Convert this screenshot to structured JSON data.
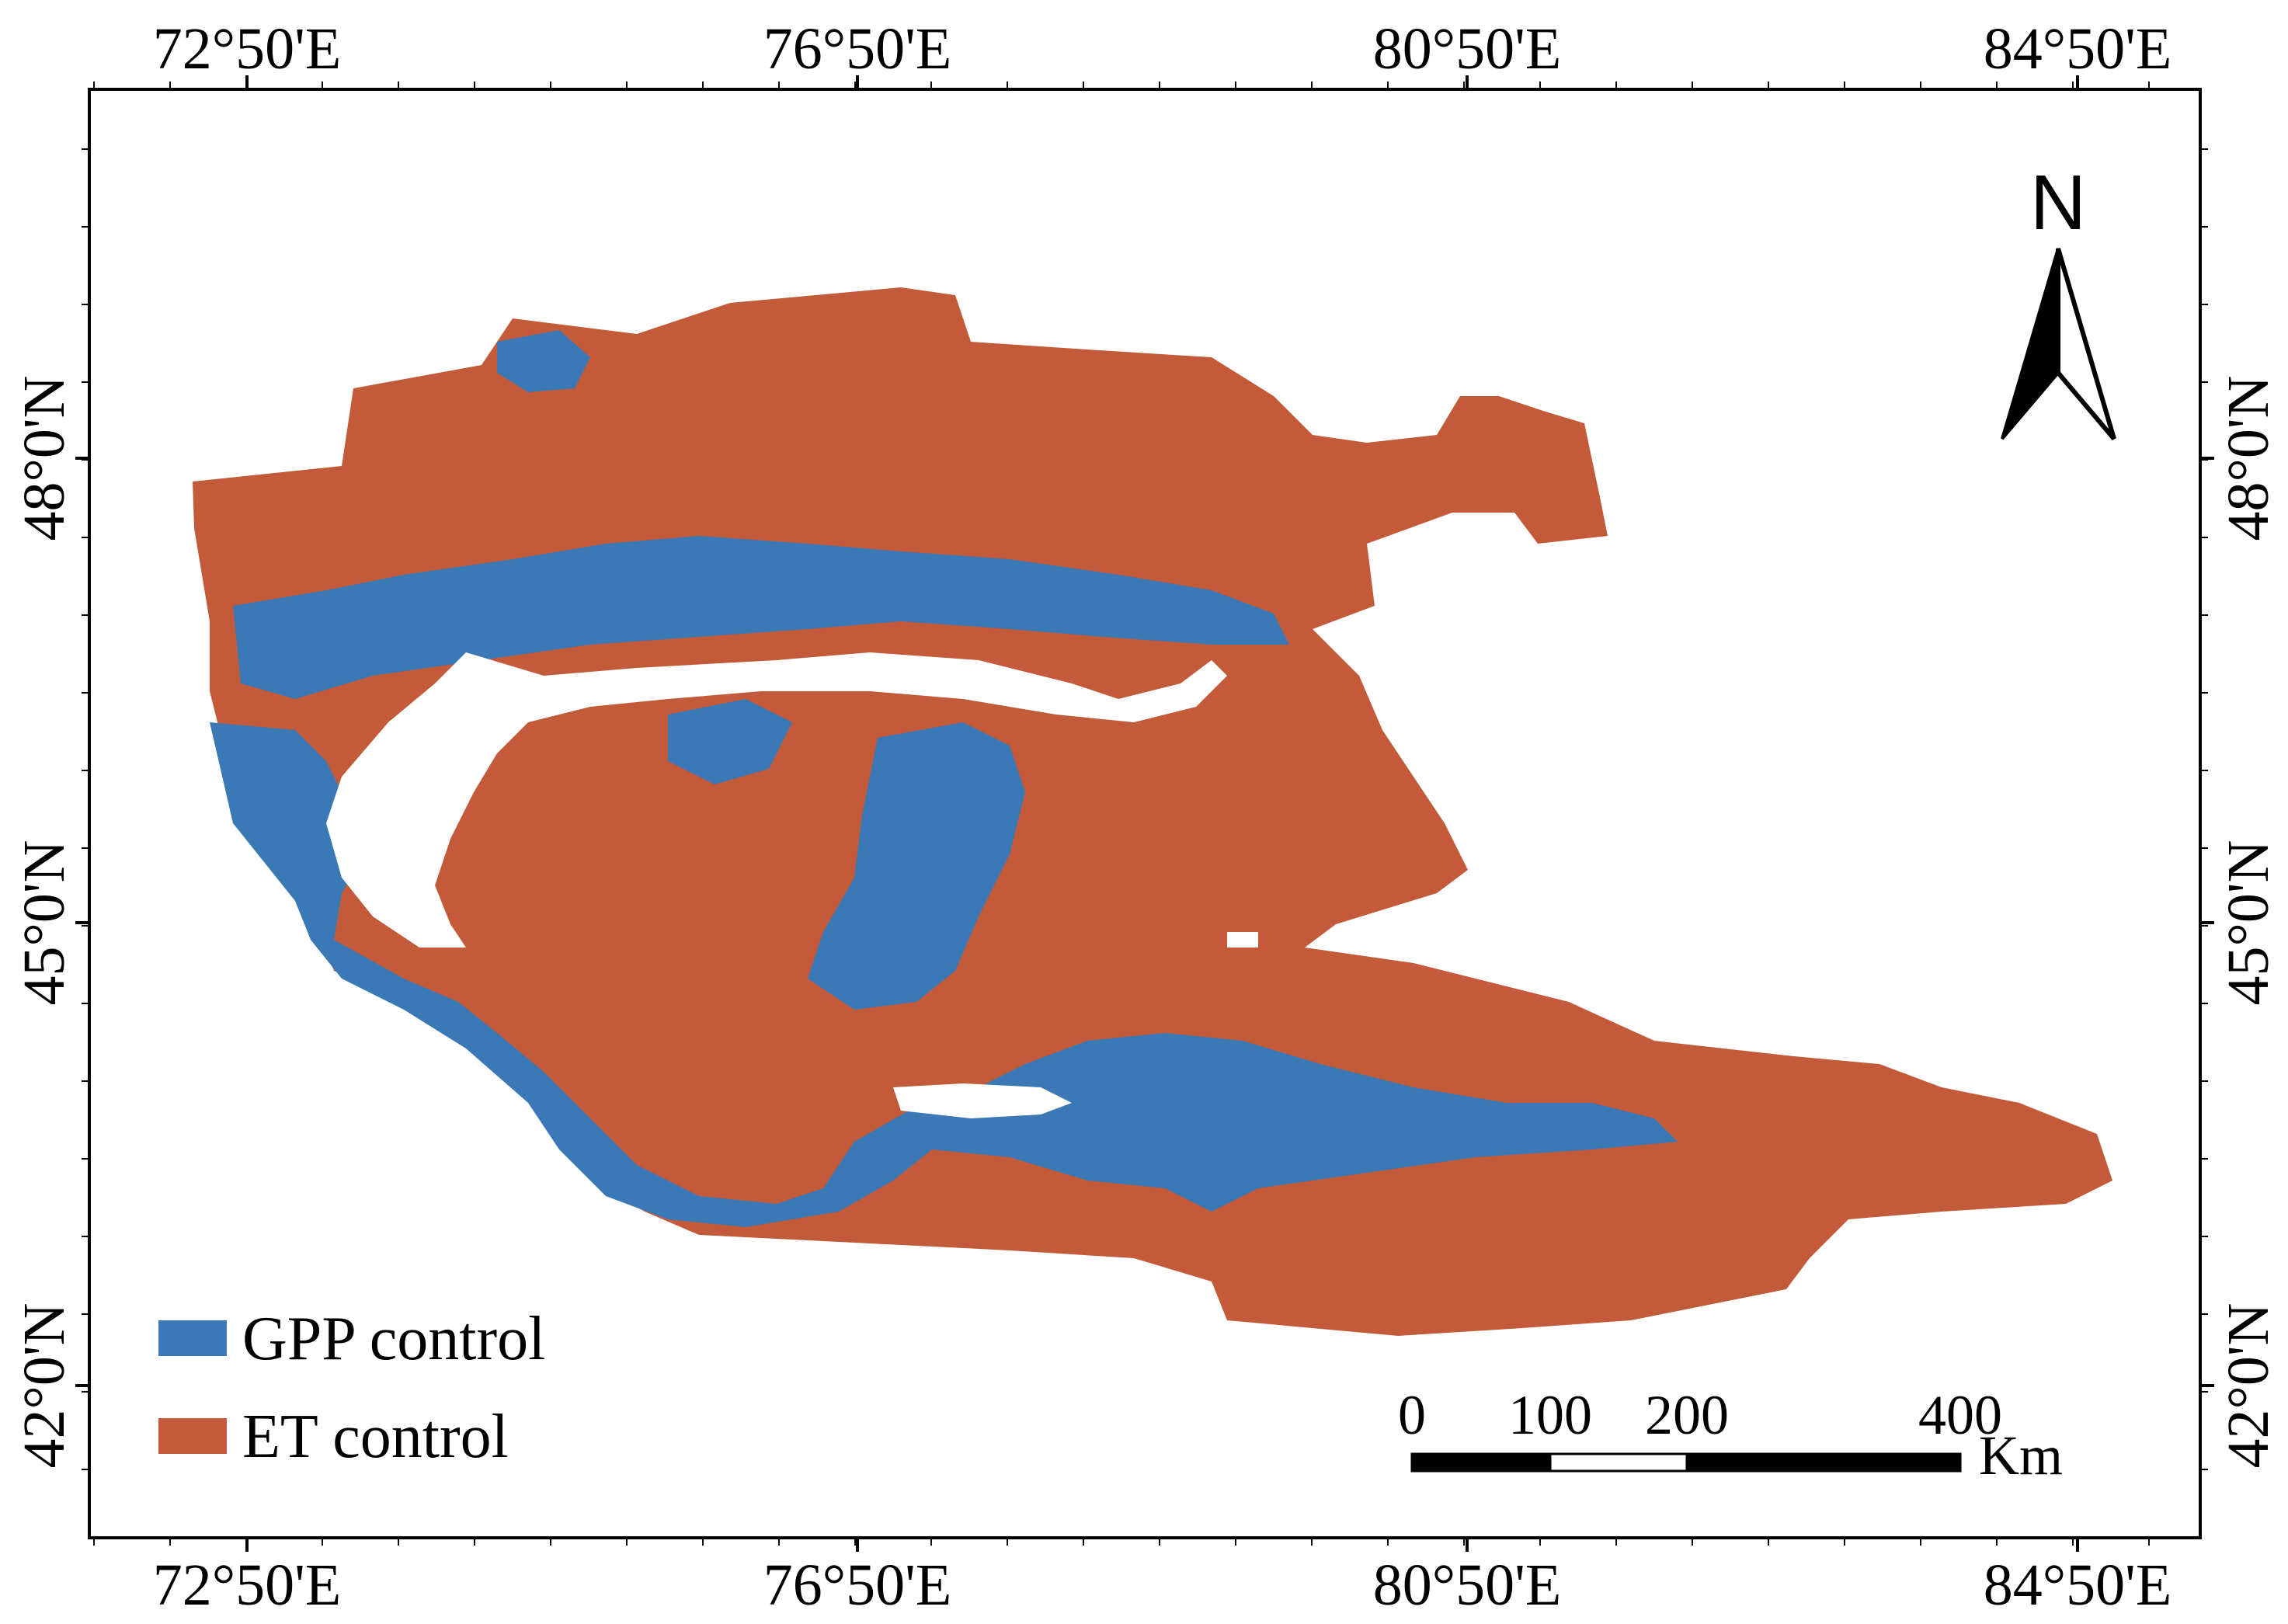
{
  "map": {
    "top_lon_labels": [
      "72°50'E",
      "76°50'E",
      "80°50'E",
      "84°50'E"
    ],
    "bottom_lon_labels": [
      "72°50'E",
      "76°50'E",
      "80°50'E",
      "84°50'E"
    ],
    "left_lat_labels": [
      "48°0'N",
      "45°0'N",
      "42°0'N"
    ],
    "right_lat_labels": [
      "48°0'N",
      "45°0'N",
      "42°0'N"
    ],
    "north_arrow": {
      "label": "N",
      "icon": "north-arrow-icon"
    },
    "legend": [
      {
        "label": "GPP control",
        "color": "#3b78b6"
      },
      {
        "label": "ET control",
        "color": "#c35b3b"
      }
    ],
    "scale_bar": {
      "ticks": [
        "0",
        "100",
        "200",
        "400"
      ],
      "unit": "Km"
    }
  }
}
